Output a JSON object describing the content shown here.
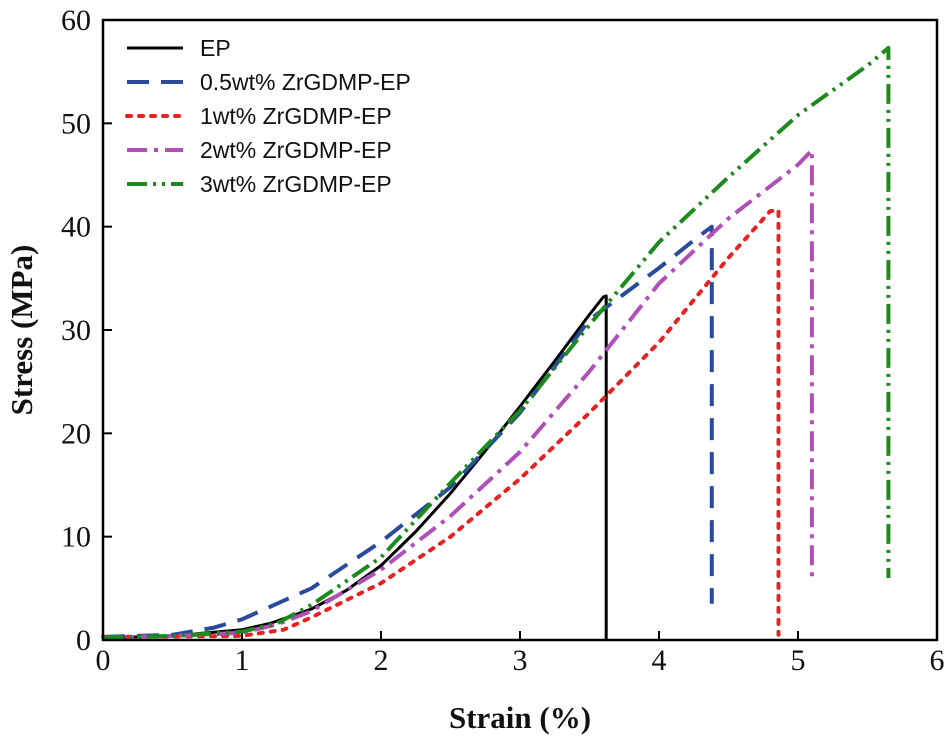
{
  "chart_data": {
    "type": "line",
    "title": "",
    "xlabel": "Strain (%)",
    "ylabel": "Stress (MPa)",
    "xlim": [
      0,
      6
    ],
    "ylim": [
      0,
      60
    ],
    "xticks": [
      0,
      1,
      2,
      3,
      4,
      5,
      6
    ],
    "yticks": [
      0,
      10,
      20,
      30,
      40,
      50,
      60
    ],
    "x_tick_labels": [
      "0",
      "1",
      "2",
      "3",
      "4",
      "5",
      "6"
    ],
    "y_tick_labels": [
      "0",
      "10",
      "20",
      "30",
      "40",
      "50",
      "60"
    ],
    "grid": false,
    "legend_position": "top-left",
    "series": [
      {
        "name": "EP",
        "color": "#000000",
        "dash": "solid",
        "points": [
          [
            0,
            0.2
          ],
          [
            0.5,
            0.4
          ],
          [
            1.0,
            1.0
          ],
          [
            1.2,
            1.6
          ],
          [
            1.5,
            3.0
          ],
          [
            1.75,
            4.8
          ],
          [
            2.0,
            7.2
          ],
          [
            2.25,
            10.5
          ],
          [
            2.5,
            14.2
          ],
          [
            2.75,
            18.3
          ],
          [
            3.0,
            22.6
          ],
          [
            3.25,
            27.0
          ],
          [
            3.5,
            31.5
          ],
          [
            3.6,
            33.2
          ],
          [
            3.62,
            33.3
          ],
          [
            3.62,
            0
          ]
        ]
      },
      {
        "name": "0.5wt% ZrGDMP-EP",
        "color": "#2b4a9c",
        "dash": "long-dash",
        "points": [
          [
            0,
            0.3
          ],
          [
            0.5,
            0.5
          ],
          [
            0.8,
            1.2
          ],
          [
            1.0,
            2.0
          ],
          [
            1.5,
            5.0
          ],
          [
            2.0,
            9.5
          ],
          [
            2.5,
            14.8
          ],
          [
            3.0,
            22.0
          ],
          [
            3.25,
            26.5
          ],
          [
            3.5,
            31.0
          ],
          [
            4.0,
            36.0
          ],
          [
            4.3,
            39.2
          ],
          [
            4.38,
            40.0
          ],
          [
            4.38,
            3.5
          ]
        ]
      },
      {
        "name": "1wt% ZrGDMP-EP",
        "color": "#e52222",
        "dash": "dot",
        "points": [
          [
            0,
            0.3
          ],
          [
            1.0,
            0.4
          ],
          [
            1.3,
            1.0
          ],
          [
            1.5,
            2.2
          ],
          [
            2.0,
            5.5
          ],
          [
            2.5,
            10.0
          ],
          [
            3.0,
            15.6
          ],
          [
            3.5,
            22.0
          ],
          [
            4.0,
            28.8
          ],
          [
            4.5,
            37.0
          ],
          [
            4.8,
            41.5
          ],
          [
            4.86,
            41.6
          ],
          [
            4.86,
            0.5
          ]
        ]
      },
      {
        "name": "2wt% ZrGDMP-EP",
        "color": "#b04fb8",
        "dash": "dash-dot",
        "points": [
          [
            0,
            0.2
          ],
          [
            0.5,
            0.4
          ],
          [
            1.0,
            0.7
          ],
          [
            1.25,
            1.5
          ],
          [
            1.5,
            2.8
          ],
          [
            2.0,
            6.8
          ],
          [
            2.5,
            12.0
          ],
          [
            3.0,
            18.2
          ],
          [
            3.5,
            26.0
          ],
          [
            4.0,
            34.5
          ],
          [
            4.5,
            40.8
          ],
          [
            5.0,
            46.0
          ],
          [
            5.1,
            47.4
          ],
          [
            5.1,
            5.5
          ]
        ]
      },
      {
        "name": "3wt% ZrGDMP-EP",
        "color": "#1c8a1c",
        "dash": "dash-dot-dot",
        "points": [
          [
            0,
            0.2
          ],
          [
            0.5,
            0.4
          ],
          [
            1.0,
            0.8
          ],
          [
            1.25,
            1.6
          ],
          [
            1.5,
            3.4
          ],
          [
            2.0,
            8.0
          ],
          [
            2.5,
            15.2
          ],
          [
            3.0,
            22.2
          ],
          [
            3.5,
            30.5
          ],
          [
            4.0,
            38.5
          ],
          [
            4.5,
            44.8
          ],
          [
            5.0,
            50.8
          ],
          [
            5.5,
            55.6
          ],
          [
            5.65,
            57.3
          ],
          [
            5.65,
            6.0
          ]
        ]
      }
    ]
  }
}
